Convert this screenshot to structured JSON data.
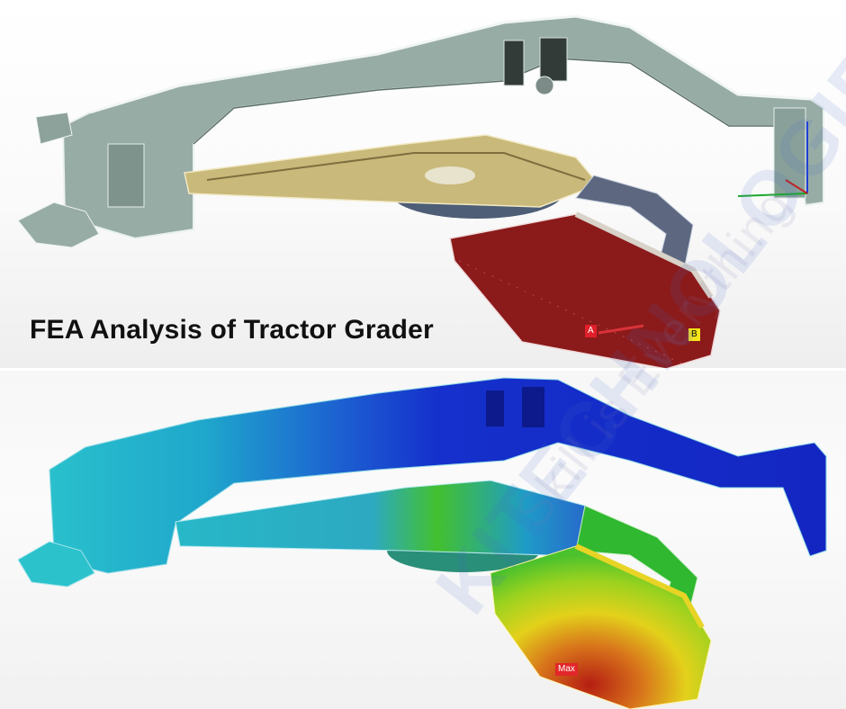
{
  "title": "FEA Analysis of Tractor Grader",
  "probes": {
    "a": "A",
    "b": "B",
    "max": "Max"
  },
  "watermark": {
    "brand": "KITECHNOLOGIES",
    "tagline": "Skill is Everything"
  },
  "colors": {
    "frame": "#98aca6",
    "frame_edge": "#e8f1ee",
    "drawbar": "#c9b97a",
    "blade": "#8b1a1a",
    "stress_blue": "#1428c8",
    "stress_cyan": "#27b6c6",
    "stress_green": "#4bc12d",
    "stress_yellow": "#e3d11b",
    "stress_red": "#b51e12"
  }
}
